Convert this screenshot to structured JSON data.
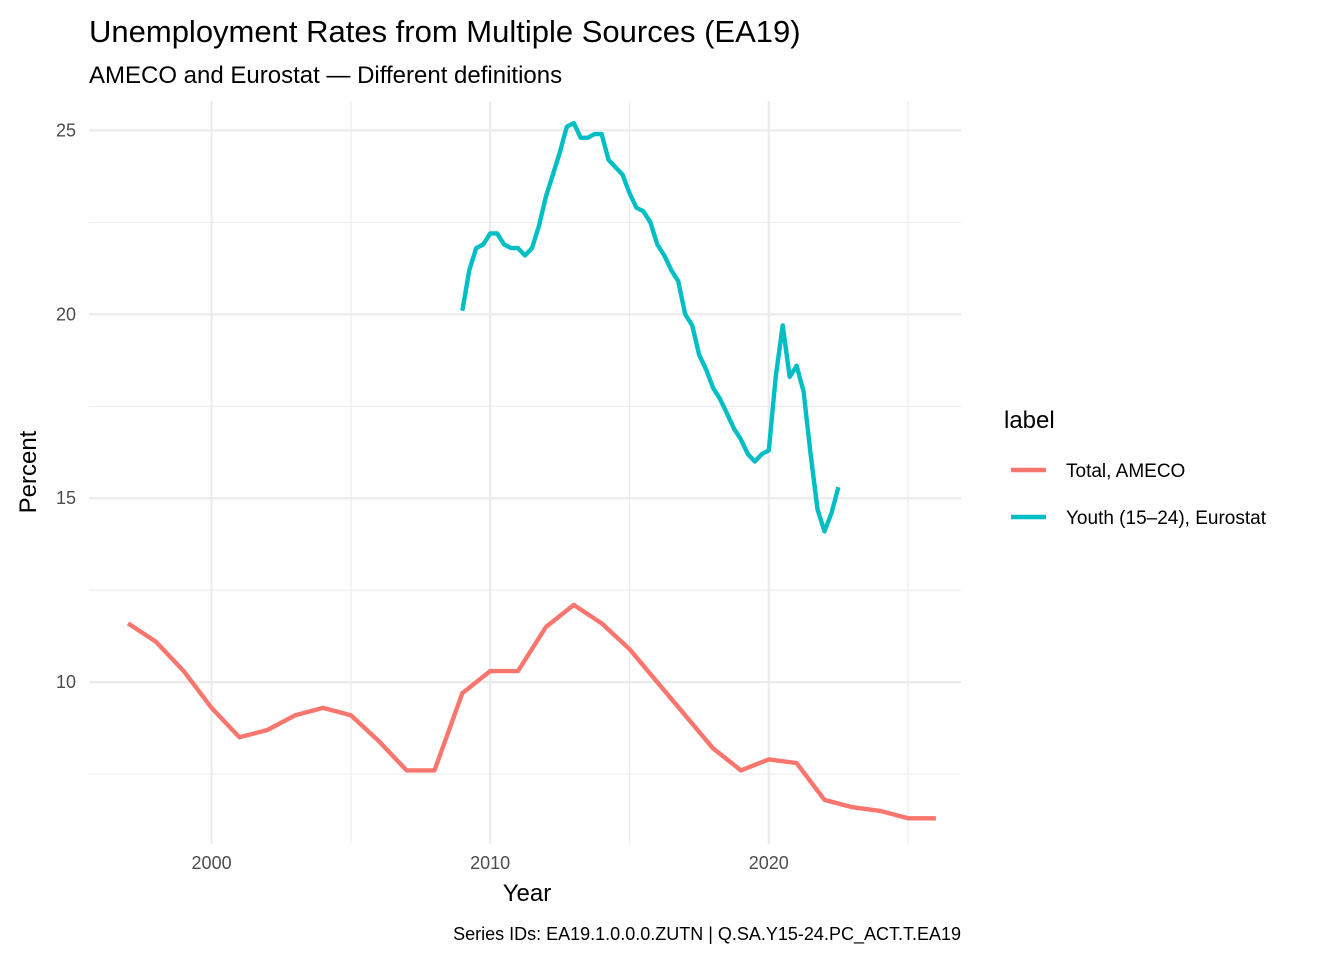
{
  "chart_data": {
    "type": "line",
    "title": "Unemployment Rates from Multiple Sources (EA19)",
    "subtitle": "AMECO and Eurostat — Different definitions",
    "xlabel": "Year",
    "ylabel": "Percent",
    "caption": "Series IDs: EA19.1.0.0.0.ZUTN | Q.SA.Y15-24.PC_ACT.T.EA19",
    "xlim": [
      1995.6,
      2026.9
    ],
    "ylim": [
      5.6,
      25.8
    ],
    "x_ticks": [
      2000,
      2010,
      2020
    ],
    "x_tick_labels": [
      "2000",
      "2010",
      "2020"
    ],
    "y_ticks": [
      10,
      15,
      20,
      25
    ],
    "y_tick_labels": [
      "10",
      "15",
      "20",
      "25"
    ],
    "grid": true,
    "legend": {
      "title": "label",
      "position": "right"
    },
    "series": [
      {
        "name": "Total, AMECO",
        "color": "#F8766D",
        "points": [
          [
            1997,
            11.6
          ],
          [
            1998,
            11.1
          ],
          [
            1999,
            10.3
          ],
          [
            2000,
            9.3
          ],
          [
            2001,
            8.5
          ],
          [
            2002,
            8.7
          ],
          [
            2003,
            9.1
          ],
          [
            2004,
            9.3
          ],
          [
            2005,
            9.1
          ],
          [
            2006,
            8.4
          ],
          [
            2007,
            7.6
          ],
          [
            2008,
            7.6
          ],
          [
            2009,
            9.7
          ],
          [
            2010,
            10.3
          ],
          [
            2011,
            10.3
          ],
          [
            2012,
            11.5
          ],
          [
            2013,
            12.1
          ],
          [
            2014,
            11.6
          ],
          [
            2015,
            10.9
          ],
          [
            2016,
            10.0
          ],
          [
            2017,
            9.1
          ],
          [
            2018,
            8.2
          ],
          [
            2019,
            7.6
          ],
          [
            2020,
            7.9
          ],
          [
            2021,
            7.8
          ],
          [
            2022,
            6.8
          ],
          [
            2023,
            6.6
          ],
          [
            2024,
            6.5
          ],
          [
            2025,
            6.3
          ],
          [
            2026,
            6.3
          ]
        ]
      },
      {
        "name": "Youth (15–24), Eurostat",
        "color": "#00BFC4",
        "points": [
          [
            2009.0,
            20.1
          ],
          [
            2009.25,
            21.2
          ],
          [
            2009.5,
            21.8
          ],
          [
            2009.75,
            21.9
          ],
          [
            2010.0,
            22.2
          ],
          [
            2010.25,
            22.2
          ],
          [
            2010.5,
            21.9
          ],
          [
            2010.75,
            21.8
          ],
          [
            2011.0,
            21.8
          ],
          [
            2011.25,
            21.6
          ],
          [
            2011.5,
            21.8
          ],
          [
            2011.75,
            22.4
          ],
          [
            2012.0,
            23.2
          ],
          [
            2012.25,
            23.8
          ],
          [
            2012.5,
            24.4
          ],
          [
            2012.75,
            25.1
          ],
          [
            2013.0,
            25.2
          ],
          [
            2013.25,
            24.8
          ],
          [
            2013.5,
            24.8
          ],
          [
            2013.75,
            24.9
          ],
          [
            2014.0,
            24.9
          ],
          [
            2014.25,
            24.2
          ],
          [
            2014.5,
            24.0
          ],
          [
            2014.75,
            23.8
          ],
          [
            2015.0,
            23.3
          ],
          [
            2015.25,
            22.9
          ],
          [
            2015.5,
            22.8
          ],
          [
            2015.75,
            22.5
          ],
          [
            2016.0,
            21.9
          ],
          [
            2016.25,
            21.6
          ],
          [
            2016.5,
            21.2
          ],
          [
            2016.75,
            20.9
          ],
          [
            2017.0,
            20.0
          ],
          [
            2017.25,
            19.7
          ],
          [
            2017.5,
            18.9
          ],
          [
            2017.75,
            18.5
          ],
          [
            2018.0,
            18.0
          ],
          [
            2018.25,
            17.7
          ],
          [
            2018.5,
            17.3
          ],
          [
            2018.75,
            16.9
          ],
          [
            2019.0,
            16.6
          ],
          [
            2019.25,
            16.2
          ],
          [
            2019.5,
            16.0
          ],
          [
            2019.75,
            16.2
          ],
          [
            2020.0,
            16.3
          ],
          [
            2020.25,
            18.3
          ],
          [
            2020.5,
            19.7
          ],
          [
            2020.75,
            18.3
          ],
          [
            2021.0,
            18.6
          ],
          [
            2021.25,
            17.9
          ],
          [
            2021.5,
            16.2
          ],
          [
            2021.75,
            14.7
          ],
          [
            2022.0,
            14.1
          ],
          [
            2022.25,
            14.6
          ],
          [
            2022.5,
            15.3
          ]
        ]
      }
    ]
  }
}
